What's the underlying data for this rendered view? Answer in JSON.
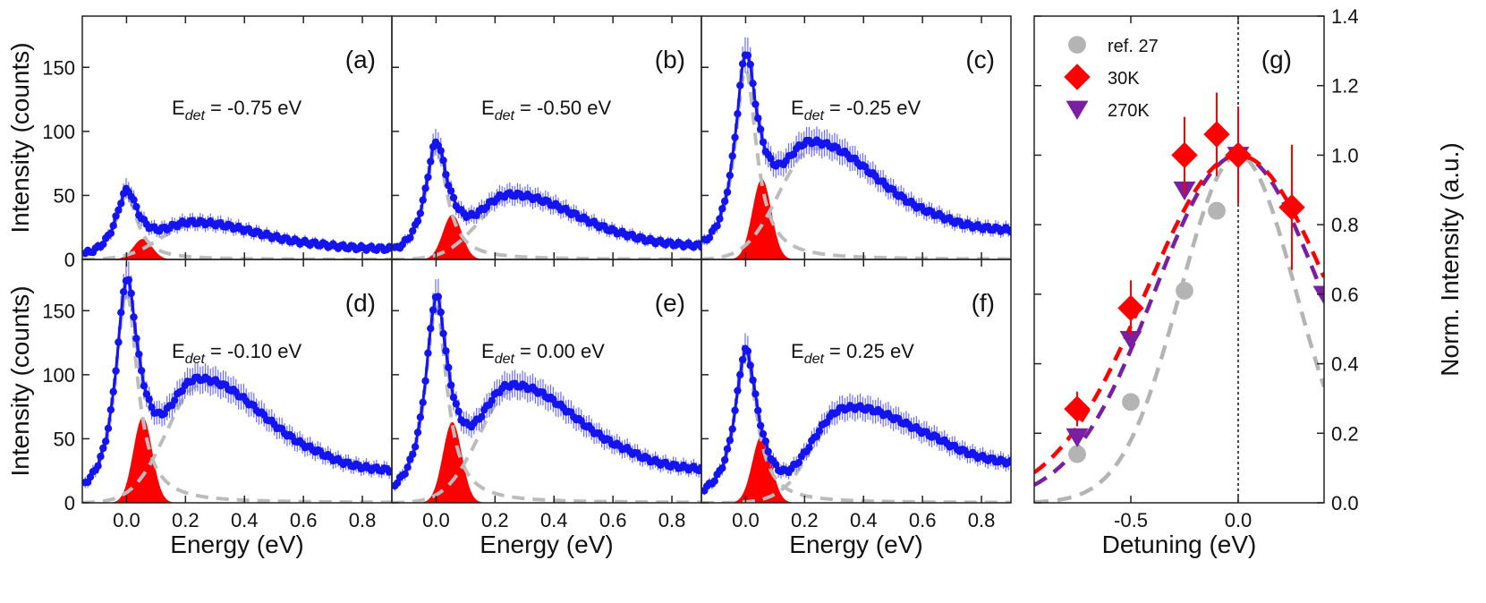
{
  "chart_data": {
    "type": "line",
    "spectra": {
      "x_label": "Energy (eV)",
      "y_label": "Intensity (counts)",
      "xlim": [
        -0.15,
        0.9
      ],
      "ylim": [
        0,
        190
      ],
      "x_ticks": [
        "0.0",
        "0.2",
        "0.4",
        "0.6",
        "0.8"
      ],
      "x_tick_values": [
        0,
        0.2,
        0.4,
        0.6,
        0.8
      ],
      "y_ticks": [
        "0",
        "50",
        "100",
        "150"
      ],
      "y_tick_values": [
        0,
        50,
        100,
        150
      ],
      "panels": [
        {
          "letter": "(a)",
          "edet_prefix": "E",
          "edet_sub": "det",
          "edet_value": " = -0.75 eV",
          "peak1": 50,
          "peak2": 16,
          "broad": 26,
          "broad_center": 0.22,
          "tail": 8
        },
        {
          "letter": "(b)",
          "edet_prefix": "E",
          "edet_sub": "det",
          "edet_value": " = -0.50 eV",
          "peak1": 87,
          "peak2": 35,
          "broad": 46,
          "broad_center": 0.25,
          "tail": 10
        },
        {
          "letter": "(c)",
          "edet_prefix": "E",
          "edet_sub": "det",
          "edet_value": " = -0.25 eV",
          "peak1": 148,
          "peak2": 63,
          "broad": 83,
          "broad_center": 0.22,
          "tail": 22
        },
        {
          "letter": "(d)",
          "edet_prefix": "E",
          "edet_sub": "det",
          "edet_value": " = -0.10 eV",
          "peak1": 165,
          "peak2": 67,
          "broad": 87,
          "broad_center": 0.24,
          "tail": 24
        },
        {
          "letter": "(e)",
          "edet_prefix": "E",
          "edet_sub": "det",
          "edet_value": " = 0.00 eV",
          "peak1": 153,
          "peak2": 63,
          "broad": 82,
          "broad_center": 0.25,
          "tail": 25
        },
        {
          "letter": "(f)",
          "edet_prefix": "E",
          "edet_sub": "det",
          "edet_value": " = 0.25 eV",
          "peak1": 117,
          "peak2": 53,
          "broad": 61,
          "broad_center": 0.33,
          "tail": 29
        }
      ]
    },
    "detuning": {
      "letter": "(g)",
      "x_label": "Detuning (eV)",
      "y_label": "Norm. Intensity (a.u.)",
      "xlim": [
        -0.95,
        0.4
      ],
      "ylim": [
        0,
        1.4
      ],
      "x_ticks": [
        "-0.5",
        "0.0"
      ],
      "x_tick_values": [
        -0.5,
        0.0
      ],
      "y_ticks": [
        "0.0",
        "0.2",
        "0.4",
        "0.6",
        "0.8",
        "1.0",
        "1.2",
        "1.4"
      ],
      "y_tick_values": [
        0,
        0.2,
        0.4,
        0.6,
        0.8,
        1.0,
        1.2,
        1.4
      ],
      "series": [
        {
          "name": "ref. 27",
          "marker": "circle",
          "color": "#b4b4b4",
          "x": [
            -0.75,
            -0.5,
            -0.25,
            -0.1
          ],
          "y": [
            0.14,
            0.29,
            0.61,
            0.84
          ],
          "err": [
            0,
            0,
            0,
            0
          ],
          "fit_sigma": 0.27,
          "fit_center": 0.0
        },
        {
          "name": "30K",
          "marker": "diamond",
          "color": "#ff0000",
          "x": [
            -0.75,
            -0.5,
            -0.25,
            -0.1,
            0.0,
            0.25
          ],
          "y": [
            0.27,
            0.56,
            1.0,
            1.06,
            1.0,
            0.85
          ],
          "err": [
            0.05,
            0.08,
            0.11,
            0.12,
            0.14,
            0.18
          ],
          "fit_sigma": 0.43,
          "fit_center": 0.0
        },
        {
          "name": "270K",
          "marker": "triangle-down",
          "color": "#7b1fa2",
          "x": [
            -0.75,
            -0.5,
            -0.25,
            0.0,
            0.4
          ],
          "y": [
            0.19,
            0.47,
            0.9,
            1.0,
            0.6
          ],
          "err": [
            0,
            0,
            0,
            0,
            0
          ],
          "fit_sigma": 0.39,
          "fit_center": 0.0
        }
      ]
    },
    "colors": {
      "data": "#1414f0",
      "error": "#6b6bff",
      "fit_peak": "#ff0000",
      "dashed": "#bcbcbc"
    }
  }
}
